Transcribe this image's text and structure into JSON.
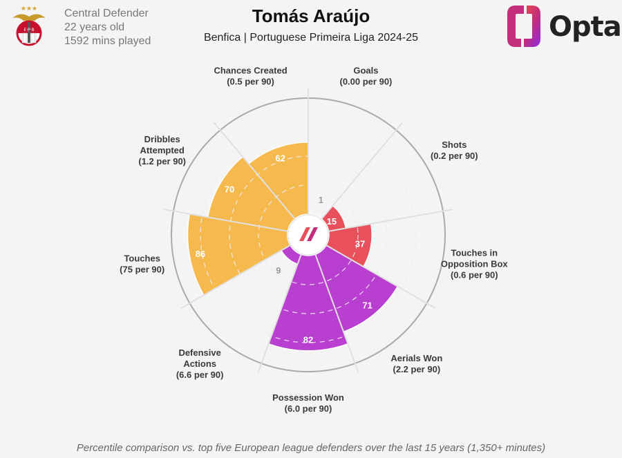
{
  "header": {
    "title": "Tomás Araújo",
    "subtitle": "Benfica | Portuguese Primeira Liga 2024-25",
    "position": "Central Defender",
    "age": "22 years old",
    "minutes": "1592 mins played",
    "brand": "Opta",
    "crest_stars": "★★★"
  },
  "footnote": "Percentile comparison vs. top five European league defenders over the last 15 years (1,350+ minutes)",
  "colors": {
    "attacking": "#e8505b",
    "possession": "#b83fcf",
    "defending_light": "#f6b94e",
    "background": "#f4f4f4",
    "ring": "#cccccc",
    "outer_ring": "#aaaaaa"
  },
  "chart_data": {
    "type": "polar-bar",
    "title": "Tomás Araújo",
    "categories": [
      {
        "name": "Goals",
        "detail": "(0.00 per 90)",
        "percentile": 1,
        "group": "attacking"
      },
      {
        "name": "Shots",
        "detail": "(0.2 per 90)",
        "percentile": 15,
        "group": "attacking"
      },
      {
        "name": "Touches in Opposition Box",
        "detail": "(0.6 per 90)",
        "percentile": 37,
        "group": "attacking"
      },
      {
        "name": "Aerials Won",
        "detail": "(2.2 per 90)",
        "percentile": 71,
        "group": "possession"
      },
      {
        "name": "Possession Won",
        "detail": "(6.0 per 90)",
        "percentile": 82,
        "group": "possession"
      },
      {
        "name": "Defensive Actions",
        "detail": "(6.6 per 90)",
        "percentile": 9,
        "group": "possession"
      },
      {
        "name": "Touches",
        "detail": "(75 per 90)",
        "percentile": 86,
        "group": "defending_light"
      },
      {
        "name": "Dribbles Attempted",
        "detail": "(1.2 per 90)",
        "percentile": 70,
        "group": "defending_light"
      },
      {
        "name": "Chances Created",
        "detail": "(0.5 per 90)",
        "percentile": 62,
        "group": "defending_light"
      }
    ],
    "range": [
      0,
      100
    ]
  }
}
